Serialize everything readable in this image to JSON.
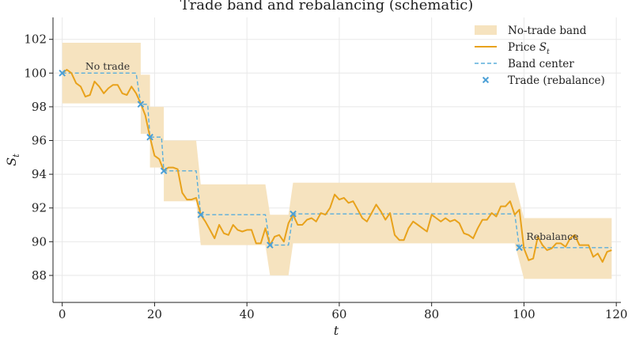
{
  "chart_data": {
    "type": "line",
    "title": "Trade band and rebalancing (schematic)",
    "xlabel": "t",
    "ylabel": "S_t",
    "xlim": [
      -2,
      121
    ],
    "ylim": [
      86.4,
      103.3
    ],
    "xticks": [
      0,
      20,
      40,
      60,
      80,
      100,
      120
    ],
    "yticks": [
      88,
      90,
      92,
      94,
      96,
      98,
      100,
      102
    ],
    "grid": true,
    "legend_position": "top-right",
    "colors": {
      "band": "#f6e3bf",
      "price": "#e8a21c",
      "center": "#5aaedb",
      "trade": "#4a9fd6"
    },
    "legend": [
      {
        "key": "band",
        "label": "No-trade band",
        "symbol": "patch"
      },
      {
        "key": "price",
        "label": "Price ",
        "label_math": "S",
        "label_sub": "t",
        "symbol": "line"
      },
      {
        "key": "center",
        "label": "Band center",
        "symbol": "dashed"
      },
      {
        "key": "trade",
        "label": "Trade (rebalance)",
        "symbol": "x-marker"
      }
    ],
    "band": [
      {
        "x0": 0,
        "x1": 16,
        "low": 98.2,
        "high": 101.8
      },
      {
        "x0": 16,
        "x1": 17,
        "low": 98.2,
        "high": 101.8
      },
      {
        "x0": 17,
        "x1": 19,
        "low": 96.4,
        "high": 99.9
      },
      {
        "x0": 19,
        "x1": 22,
        "low": 94.4,
        "high": 98.0
      },
      {
        "x0": 22,
        "x1": 29,
        "low": 92.4,
        "high": 96.0
      },
      {
        "x0": 30,
        "x1": 44,
        "low": 89.8,
        "high": 93.4
      },
      {
        "x0": 45,
        "x1": 49,
        "low": 88.0,
        "high": 91.6
      },
      {
        "x0": 50,
        "x1": 98,
        "low": 89.9,
        "high": 93.5
      },
      {
        "x0": 100,
        "x1": 119,
        "low": 87.8,
        "high": 91.4
      }
    ],
    "band_center": [
      [
        0,
        100.0
      ],
      [
        16,
        100.0
      ],
      [
        17,
        98.15
      ],
      [
        18.5,
        98.15
      ],
      [
        19,
        96.2
      ],
      [
        21.5,
        96.2
      ],
      [
        22,
        94.2
      ],
      [
        29,
        94.2
      ],
      [
        30,
        91.6
      ],
      [
        44,
        91.6
      ],
      [
        45,
        89.8
      ],
      [
        49,
        89.8
      ],
      [
        50,
        91.65
      ],
      [
        98,
        91.65
      ],
      [
        99,
        89.65
      ],
      [
        119,
        89.65
      ]
    ],
    "price_series": {
      "x": [
        0,
        1,
        2,
        3,
        4,
        5,
        6,
        7,
        8,
        9,
        10,
        11,
        12,
        13,
        14,
        15,
        16,
        17,
        18,
        19,
        20,
        21,
        22,
        23,
        24,
        25,
        26,
        27,
        28,
        29,
        30,
        31,
        32,
        33,
        34,
        35,
        36,
        37,
        38,
        39,
        40,
        41,
        42,
        43,
        44,
        45,
        46,
        47,
        48,
        49,
        50,
        51,
        52,
        53,
        54,
        55,
        56,
        57,
        58,
        59,
        60,
        61,
        62,
        63,
        64,
        65,
        66,
        67,
        68,
        69,
        70,
        71,
        72,
        73,
        74,
        75,
        76,
        77,
        78,
        79,
        80,
        81,
        82,
        83,
        84,
        85,
        86,
        87,
        88,
        89,
        90,
        91,
        92,
        93,
        94,
        95,
        96,
        97,
        98,
        99,
        100,
        101,
        102,
        103,
        104,
        105,
        106,
        107,
        108,
        109,
        110,
        111,
        112,
        113,
        114,
        115,
        116,
        117,
        118,
        119
      ],
      "y": [
        100.0,
        100.2,
        100.0,
        99.4,
        99.2,
        98.6,
        98.7,
        99.5,
        99.2,
        98.8,
        99.1,
        99.3,
        99.3,
        98.8,
        98.7,
        99.2,
        98.8,
        98.2,
        97.5,
        96.2,
        95.1,
        94.9,
        94.2,
        94.4,
        94.4,
        94.3,
        92.9,
        92.5,
        92.5,
        92.6,
        91.6,
        91.2,
        90.7,
        90.2,
        91.0,
        90.5,
        90.4,
        91.0,
        90.7,
        90.6,
        90.7,
        90.7,
        89.9,
        89.9,
        90.8,
        89.8,
        90.3,
        90.4,
        90.0,
        91.1,
        91.6,
        91.0,
        91.0,
        91.3,
        91.4,
        91.2,
        91.7,
        91.6,
        92.0,
        92.8,
        92.5,
        92.6,
        92.3,
        92.4,
        91.9,
        91.4,
        91.2,
        91.7,
        92.2,
        91.8,
        91.3,
        91.7,
        90.4,
        90.1,
        90.1,
        90.8,
        91.2,
        91.0,
        90.8,
        90.6,
        91.6,
        91.4,
        91.2,
        91.4,
        91.2,
        91.3,
        91.1,
        90.5,
        90.4,
        90.2,
        90.8,
        91.3,
        91.3,
        91.7,
        91.5,
        92.1,
        92.1,
        92.4,
        91.6,
        91.9,
        89.6,
        88.9,
        89.0,
        90.3,
        89.8,
        89.5,
        89.6,
        89.9,
        89.9,
        89.7,
        90.2,
        90.4,
        89.8,
        89.8,
        89.8,
        89.1,
        89.3,
        88.8,
        89.4,
        89.5
      ]
    },
    "trades": [
      {
        "x": 0,
        "y": 100.0
      },
      {
        "x": 17,
        "y": 98.15
      },
      {
        "x": 19,
        "y": 96.2
      },
      {
        "x": 22,
        "y": 94.2
      },
      {
        "x": 30,
        "y": 91.6
      },
      {
        "x": 45,
        "y": 89.8
      },
      {
        "x": 50,
        "y": 91.65
      },
      {
        "x": 99,
        "y": 89.65
      }
    ],
    "annotations": [
      {
        "text": "No trade",
        "x": 5,
        "y": 100.2
      },
      {
        "text": "Rebalance",
        "x": 100.5,
        "y": 90.1
      }
    ]
  }
}
